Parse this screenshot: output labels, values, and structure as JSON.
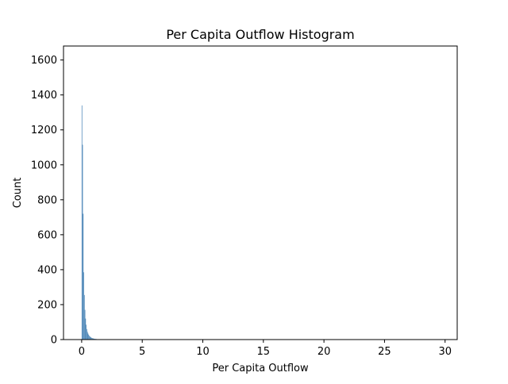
{
  "chart_data": {
    "type": "bar",
    "title": "Per Capita Outflow Histogram",
    "xlabel": "Per Capita Outflow",
    "ylabel": "Count",
    "xlim": [
      -1.5,
      31.0
    ],
    "ylim": [
      0,
      1680
    ],
    "xticks": [
      0,
      5,
      10,
      15,
      20,
      25,
      30
    ],
    "yticks": [
      0,
      200,
      400,
      600,
      800,
      1000,
      1200,
      1400,
      1600
    ],
    "bin_width": 0.05,
    "bins_x": [
      0.0,
      0.05,
      0.1,
      0.15,
      0.2,
      0.25,
      0.3,
      0.35,
      0.4,
      0.45,
      0.5,
      0.55,
      0.6,
      0.65,
      0.7,
      0.75,
      0.8,
      0.85,
      0.9,
      0.95,
      1.0,
      1.05,
      1.1,
      1.15,
      1.2,
      1.25,
      1.3,
      1.35,
      1.4,
      1.45,
      1.5,
      1.55,
      1.6,
      1.7,
      1.8,
      1.9,
      2.0,
      2.2
    ],
    "values": [
      1340,
      1115,
      720,
      385,
      255,
      170,
      120,
      85,
      60,
      45,
      35,
      28,
      22,
      18,
      15,
      12,
      10,
      8,
      7,
      6,
      5,
      4,
      4,
      3,
      3,
      2,
      2,
      2,
      2,
      1,
      1,
      1,
      1,
      1,
      1,
      1,
      1,
      1
    ],
    "bar_color": "#4682b4",
    "grid": false,
    "legend": false
  }
}
